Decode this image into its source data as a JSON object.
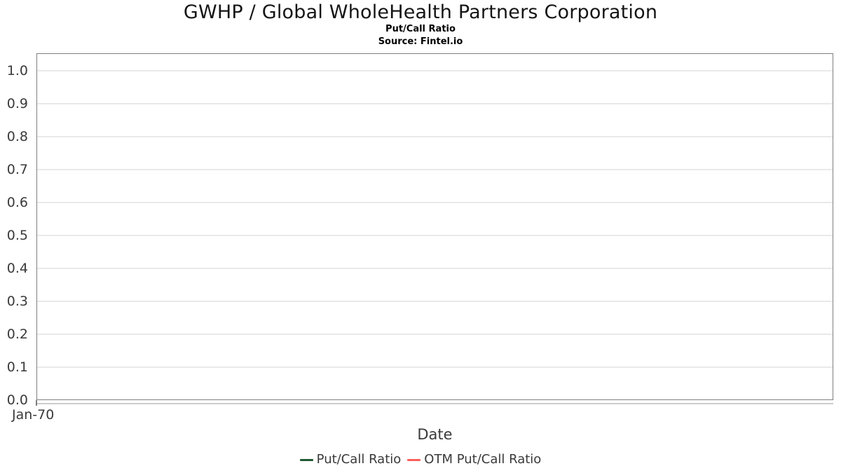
{
  "chart_data": {
    "type": "line",
    "title": "GWHP / Global WholeHealth Partners Corporation",
    "subtitle": "Put/Call Ratio",
    "source": "Source: Fintel.io",
    "xlabel": "Date",
    "ylabel": "",
    "x_tick_labels": [
      "Jan-70"
    ],
    "y_tick_labels": [
      "0.0",
      "0.1",
      "0.2",
      "0.3",
      "0.4",
      "0.5",
      "0.6",
      "0.7",
      "0.8",
      "0.9",
      "1.0"
    ],
    "ylim": [
      0.0,
      1.05
    ],
    "grid": "horizontal",
    "legend_position": "bottom-center",
    "series": [
      {
        "name": "Put/Call Ratio",
        "color": "#205934",
        "values": []
      },
      {
        "name": "OTM Put/Call Ratio",
        "color": "#fa5f5c",
        "values": []
      }
    ],
    "colors": {
      "plot_border": "#7f7f7f",
      "gridline": "#e9e9e9",
      "axis_line": "#cccccc",
      "tick_label": "#3a3a3a",
      "title_text": "#151515",
      "axis_title": "#3a3a3a",
      "legend_text": "#3a3a3a",
      "plot_background": "#ffffff"
    }
  }
}
